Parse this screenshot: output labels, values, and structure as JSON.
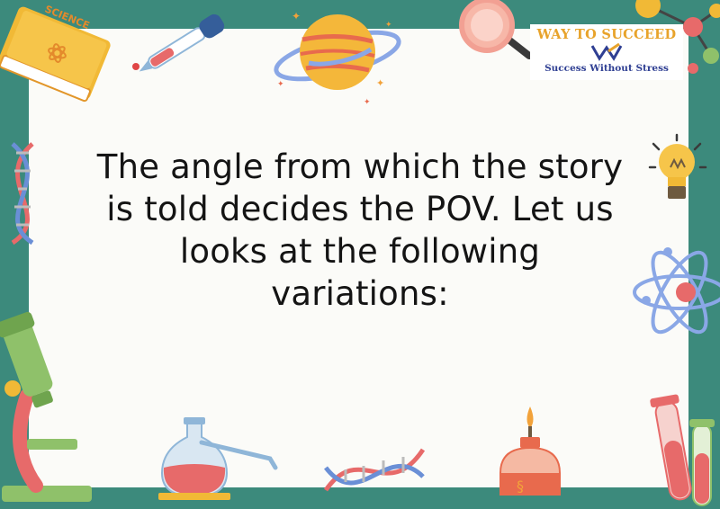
{
  "slide": {
    "body_text": "The angle from which the story is told decides the POV. Let us looks at the following variations:"
  },
  "logo": {
    "title": "WAY TO SUCCEED",
    "tagline": "Success Without Stress"
  },
  "book": {
    "cover_label": "SCIENCE"
  },
  "icons": [
    "science-book-icon",
    "dropper-icon",
    "planet-icon",
    "magnifier-icon",
    "molecule-icon",
    "dna-icon",
    "lightbulb-icon",
    "atom-icon",
    "microscope-icon",
    "flask-icon",
    "burner-icon",
    "test-tubes-icon"
  ],
  "colors": {
    "frame": "#3c8a7c",
    "card": "#fbfbf8",
    "text": "#141414",
    "logo_gold": "#e8a32b",
    "logo_blue": "#2f3f93"
  }
}
